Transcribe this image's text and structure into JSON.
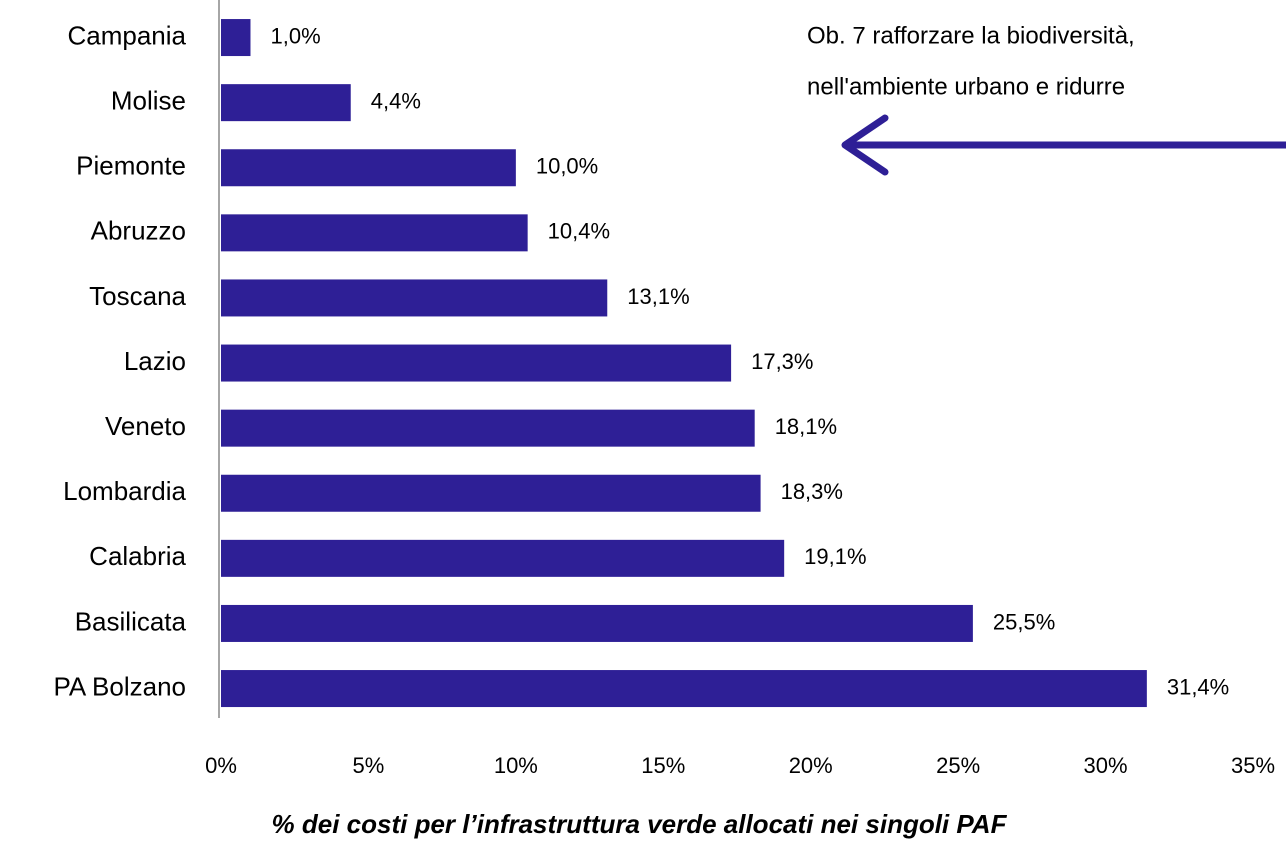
{
  "chart_data": {
    "type": "bar",
    "orientation": "horizontal",
    "categories": [
      "Campania",
      "Molise",
      "Piemonte",
      "Abruzzo",
      "Toscana",
      "Lazio",
      "Veneto",
      "Lombardia",
      "Calabria",
      "Basilicata",
      "PA Bolzano"
    ],
    "values": [
      1.0,
      4.4,
      10.0,
      10.4,
      13.1,
      17.3,
      18.1,
      18.3,
      19.1,
      25.5,
      31.4
    ],
    "value_labels": [
      "1,0%",
      "4,4%",
      "10,0%",
      "10,4%",
      "13,1%",
      "17,3%",
      "18,1%",
      "18,3%",
      "19,1%",
      "25,5%",
      "31,4%"
    ],
    "color": "#2e1f96",
    "xlim": [
      0,
      35
    ],
    "xticks": [
      {
        "value": 0,
        "label": "0%"
      },
      {
        "value": 5,
        "label": "5%"
      },
      {
        "value": 10,
        "label": "10%"
      },
      {
        "value": 15,
        "label": "15%"
      },
      {
        "value": 20,
        "label": "20%"
      },
      {
        "value": 25,
        "label": "25%"
      },
      {
        "value": 30,
        "label": "30%"
      },
      {
        "value": 35,
        "label": "35%"
      }
    ],
    "x_label": "% dei costi per l’infrastruttura verde allocati nei singoli PAF",
    "annotation": [
      "Ob. 7 rafforzare la biodiversità,",
      "nell'ambiente urbano e ridurre"
    ]
  }
}
